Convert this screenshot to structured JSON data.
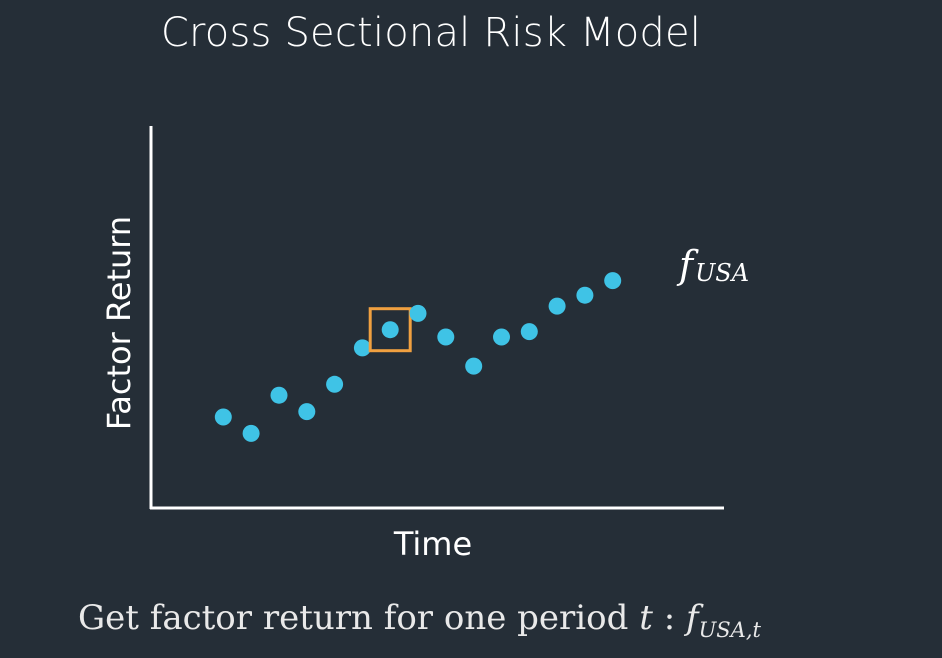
{
  "slide": {
    "title": "Cross Sectional Risk Model",
    "caption": {
      "text": "Get factor return for one period",
      "variable": "t",
      "separator": ":",
      "symbol": "f",
      "subscript": "USA,t"
    }
  },
  "chart_data": {
    "type": "scatter",
    "title": "",
    "xlabel": "Time",
    "ylabel": "Factor Return",
    "grid": false,
    "series": [
      {
        "name": "f",
        "name_subscript": "USA",
        "color": "#3fc3e6",
        "x": [
          1,
          2,
          3,
          4,
          5,
          6,
          7,
          8,
          9,
          10,
          11,
          12,
          13,
          14,
          15
        ],
        "y": [
          1.0,
          0.55,
          1.6,
          1.15,
          1.9,
          2.9,
          3.4,
          3.85,
          3.2,
          2.4,
          3.2,
          3.35,
          4.05,
          4.35,
          4.75
        ]
      }
    ],
    "highlight": {
      "index": 6,
      "color": "#f0a040"
    },
    "xlim": [
      -1.6,
      19
    ],
    "ylim": [
      -1.5,
      9
    ]
  }
}
